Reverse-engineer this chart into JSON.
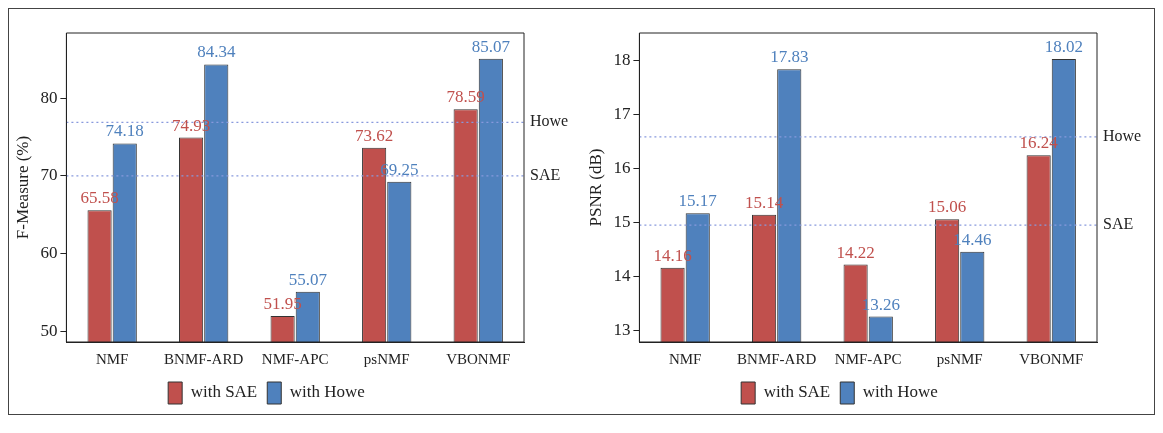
{
  "chart_data": [
    {
      "type": "bar",
      "ylabel": "F-Measure (%)",
      "categories": [
        "NMF",
        "BNMF-ARD",
        "NMF-APC",
        "psNMF",
        "VBONMF"
      ],
      "series": [
        {
          "name": "with SAE",
          "color": "#c0504d",
          "values": [
            65.58,
            74.93,
            51.95,
            73.62,
            78.59
          ]
        },
        {
          "name": "with Howe",
          "color": "#4f81bd",
          "values": [
            74.18,
            84.34,
            55.07,
            69.25,
            85.07
          ]
        }
      ],
      "ylim": [
        48.6,
        88.4
      ],
      "yticks": [
        50,
        60,
        70,
        80
      ],
      "grid": false,
      "legend": "bottom",
      "data_labels": true,
      "ref_lines": [
        {
          "axis": "y",
          "value": 76.9,
          "label": "Howe",
          "color": "#8899dd",
          "line_style": "dotted"
        },
        {
          "axis": "y",
          "value": 70,
          "label": "SAE",
          "color": "#8899dd",
          "line_style": "dotted"
        }
      ]
    },
    {
      "type": "bar",
      "ylabel": "PSNR (dB)",
      "categories": [
        "NMF",
        "BNMF-ARD",
        "NMF-APC",
        "psNMF",
        "VBONMF"
      ],
      "series": [
        {
          "name": "with SAE",
          "color": "#c0504d",
          "values": [
            14.16,
            15.14,
            14.22,
            15.06,
            16.24
          ]
        },
        {
          "name": "with Howe",
          "color": "#4f81bd",
          "values": [
            15.17,
            17.83,
            13.26,
            14.46,
            18.02
          ]
        }
      ],
      "ylim": [
        12.79,
        18.5
      ],
      "yticks": [
        13,
        14,
        15,
        16,
        17,
        18
      ],
      "grid": false,
      "legend": "bottom",
      "data_labels": true,
      "ref_lines": [
        {
          "axis": "y",
          "value": 16.58,
          "label": "Howe",
          "color": "#8899dd",
          "line_style": "dotted"
        },
        {
          "axis": "y",
          "value": 14.95,
          "label": "SAE",
          "color": "#8899dd",
          "line_style": "dotted"
        }
      ]
    }
  ]
}
